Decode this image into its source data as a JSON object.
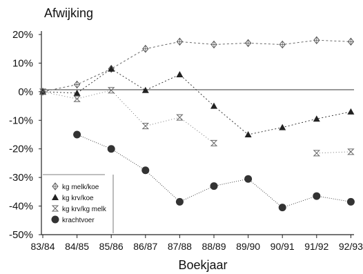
{
  "chart_data": {
    "type": "line",
    "title": "Afwijking",
    "xlabel": "Boekjaar",
    "ylabel": "",
    "categories": [
      "83/84",
      "84/85",
      "85/86",
      "86/87",
      "87/88",
      "88/89",
      "89/90",
      "90/91",
      "91/92",
      "92/93"
    ],
    "ylim": [
      -50,
      20
    ],
    "yticks": [
      20,
      10,
      0,
      -10,
      -20,
      -30,
      -40,
      -50
    ],
    "ytick_labels": [
      "20%",
      "10%",
      "0%",
      "-10%",
      "-20%",
      "-30%",
      "-40%",
      "-50%"
    ],
    "grid": false,
    "legend_position": "bottom-left",
    "series": [
      {
        "name": "kg melk/koe",
        "marker": "diamond",
        "color": "#555555",
        "values": [
          0,
          2.5,
          8,
          15,
          17.5,
          16.5,
          17,
          16.5,
          18,
          17.5
        ]
      },
      {
        "name": "kg krv/koe",
        "marker": "triangle",
        "color": "#222222",
        "values": [
          0,
          -0.5,
          8,
          0.5,
          6,
          -5,
          -15,
          -12.5,
          -9.5,
          -7
        ]
      },
      {
        "name": "kg krv/kg melk",
        "marker": "hourglass",
        "color": "#666666",
        "values": [
          0,
          -2.5,
          0.5,
          -12,
          -9,
          -18,
          null,
          null,
          -21.5,
          -21
        ]
      },
      {
        "name": "krachtvoer",
        "marker": "circle",
        "color": "#333333",
        "values": [
          null,
          -15,
          -20,
          -27.5,
          -38.5,
          -33,
          -30.5,
          -40.5,
          -36.5,
          -38.5
        ]
      }
    ]
  }
}
